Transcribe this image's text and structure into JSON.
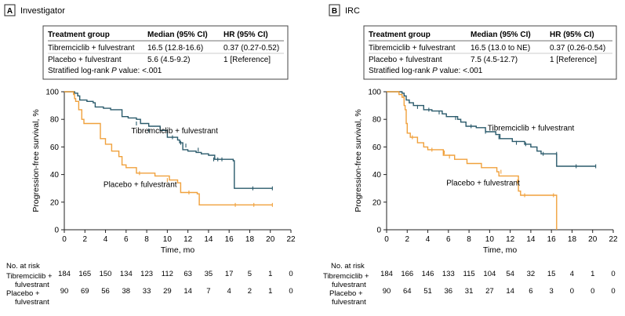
{
  "colors": {
    "tibremciclib": "#2a5a6b",
    "placebo": "#f0a13c",
    "axis": "#222222",
    "table_border": "#444444"
  },
  "panels": [
    {
      "letter": "A",
      "name": "Investigator",
      "table": {
        "headers": [
          "Treatment group",
          "Median (95% CI)",
          "HR (95% CI)"
        ],
        "rows": [
          [
            "Tibremciclib + fulvestrant",
            "16.5 (12.8-16.6)",
            "0.37 (0.27-0.52)"
          ],
          [
            "Placebo + fulvestrant",
            "5.6 (4.5-9.2)",
            "1 [Reference]"
          ]
        ],
        "footer_prefix": "Stratified log-rank ",
        "footer_italic": "P",
        "footer_suffix": " value: <.001"
      },
      "risk": {
        "title": "No. at risk",
        "rows": [
          {
            "label": [
              "Tibremciclib +",
              "fulvestrant"
            ],
            "values": [
              "184",
              "165",
              "150",
              "134",
              "123",
              "112",
              "63",
              "35",
              "17",
              "5",
              "1",
              "0"
            ]
          },
          {
            "label": [
              "Placebo +",
              "fulvestrant"
            ],
            "values": [
              "90",
              "69",
              "56",
              "38",
              "33",
              "29",
              "14",
              "7",
              "4",
              "2",
              "1",
              "0"
            ]
          }
        ]
      }
    },
    {
      "letter": "B",
      "name": "IRC",
      "table": {
        "headers": [
          "Treatment group",
          "Median (95% CI)",
          "HR (95% CI)"
        ],
        "rows": [
          [
            "Tibremciclib + fulvestrant",
            "16.5 (13.0 to NE)",
            "0.37 (0.26-0.54)"
          ],
          [
            "Placebo + fulvestrant",
            "7.5 (4.5-12.7)",
            "1 [Reference]"
          ]
        ],
        "footer_prefix": "Stratified log-rank ",
        "footer_italic": "P",
        "footer_suffix": " value: <.001"
      },
      "risk": {
        "title": "No. at risk",
        "rows": [
          {
            "label": [
              "Tibremciclib +",
              "fulvestrant"
            ],
            "values": [
              "184",
              "166",
              "146",
              "133",
              "115",
              "104",
              "54",
              "32",
              "15",
              "4",
              "1",
              "0"
            ]
          },
          {
            "label": [
              "Placebo +",
              "fulvestrant"
            ],
            "values": [
              "90",
              "64",
              "51",
              "36",
              "31",
              "27",
              "14",
              "6",
              "3",
              "0",
              "0",
              "0"
            ]
          }
        ]
      }
    }
  ],
  "chart_data": [
    {
      "type": "line",
      "step": true,
      "xlabel": "Time, mo",
      "ylabel": "Progression-free survival, %",
      "xlim": [
        0,
        22
      ],
      "ylim": [
        0,
        100
      ],
      "xticks": [
        0,
        2,
        4,
        6,
        8,
        10,
        12,
        14,
        16,
        18,
        20,
        22
      ],
      "yticks": [
        0,
        20,
        40,
        60,
        80,
        100
      ],
      "series": [
        {
          "name": "Tibremciclib + fulvestrant",
          "label_at": [
            6.5,
            70
          ],
          "points": [
            [
              0,
              100
            ],
            [
              1.0,
              99
            ],
            [
              1.3,
              97
            ],
            [
              1.5,
              94
            ],
            [
              2.2,
              93
            ],
            [
              2.8,
              92
            ],
            [
              3.0,
              89
            ],
            [
              3.8,
              88
            ],
            [
              4.5,
              87
            ],
            [
              5.6,
              82
            ],
            [
              6.2,
              81
            ],
            [
              7.0,
              80
            ],
            [
              7.4,
              77
            ],
            [
              8.2,
              75
            ],
            [
              9.3,
              72
            ],
            [
              10.0,
              67
            ],
            [
              11.0,
              65
            ],
            [
              11.2,
              63
            ],
            [
              11.5,
              58
            ],
            [
              12.0,
              57
            ],
            [
              12.8,
              56
            ],
            [
              13.3,
              55
            ],
            [
              14.0,
              54
            ],
            [
              14.6,
              51
            ],
            [
              16.4,
              50
            ],
            [
              16.5,
              30
            ],
            [
              20.2,
              30
            ]
          ],
          "censor": [
            [
              7.0,
              77
            ],
            [
              8.2,
              72
            ],
            [
              10.5,
              67
            ],
            [
              11.3,
              63
            ],
            [
              11.8,
              61
            ],
            [
              13.0,
              58
            ],
            [
              14.5,
              51
            ],
            [
              14.9,
              51
            ],
            [
              15.3,
              51
            ],
            [
              18.3,
              30
            ],
            [
              20.2,
              30
            ]
          ]
        },
        {
          "name": "Placebo + fulvestrant",
          "label_at": [
            3.8,
            31
          ],
          "points": [
            [
              0,
              100
            ],
            [
              0.9,
              98
            ],
            [
              1.0,
              95
            ],
            [
              1.1,
              93
            ],
            [
              1.4,
              87
            ],
            [
              1.7,
              80
            ],
            [
              1.9,
              77
            ],
            [
              3.5,
              66
            ],
            [
              4.0,
              62
            ],
            [
              4.6,
              57
            ],
            [
              5.3,
              53
            ],
            [
              5.6,
              47
            ],
            [
              6.0,
              45
            ],
            [
              7.0,
              41
            ],
            [
              8.8,
              39
            ],
            [
              10.2,
              36
            ],
            [
              11.0,
              34
            ],
            [
              11.3,
              27
            ],
            [
              12.9,
              26
            ],
            [
              13.1,
              18
            ],
            [
              20.2,
              18
            ]
          ],
          "censor": [
            [
              7.3,
              41
            ],
            [
              10.0,
              36
            ],
            [
              11.3,
              30
            ],
            [
              12.1,
              27
            ],
            [
              13.1,
              22
            ],
            [
              16.6,
              18
            ],
            [
              18.4,
              18
            ],
            [
              20.2,
              18
            ]
          ]
        }
      ]
    },
    {
      "type": "line",
      "step": true,
      "xlabel": "Time, mo",
      "ylabel": "Progression-free survival, %",
      "xlim": [
        0,
        22
      ],
      "ylim": [
        0,
        100
      ],
      "xticks": [
        0,
        2,
        4,
        6,
        8,
        10,
        12,
        14,
        16,
        18,
        20,
        22
      ],
      "yticks": [
        0,
        20,
        40,
        60,
        80,
        100
      ],
      "series": [
        {
          "name": "Tibremciclib + fulvestrant",
          "label_at": [
            9.8,
            72
          ],
          "points": [
            [
              0,
              100
            ],
            [
              1.5,
              99
            ],
            [
              1.7,
              97
            ],
            [
              1.9,
              94
            ],
            [
              2.2,
              92
            ],
            [
              2.6,
              90
            ],
            [
              3.6,
              87
            ],
            [
              4.4,
              86
            ],
            [
              5.4,
              84
            ],
            [
              5.8,
              82
            ],
            [
              6.9,
              80
            ],
            [
              7.2,
              78
            ],
            [
              7.7,
              75
            ],
            [
              8.7,
              74
            ],
            [
              9.6,
              71
            ],
            [
              10.6,
              69
            ],
            [
              11.0,
              66
            ],
            [
              12.2,
              64
            ],
            [
              13.4,
              62
            ],
            [
              14.0,
              60
            ],
            [
              14.6,
              57
            ],
            [
              15.0,
              55
            ],
            [
              16.5,
              46
            ],
            [
              20.3,
              46
            ]
          ],
          "censor": [
            [
              2.2,
              93
            ],
            [
              3.0,
              89
            ],
            [
              4.1,
              87
            ],
            [
              5.1,
              85
            ],
            [
              6.7,
              81
            ],
            [
              8.2,
              75
            ],
            [
              9.6,
              71
            ],
            [
              10.9,
              67
            ],
            [
              12.6,
              63
            ],
            [
              13.5,
              62
            ],
            [
              15.2,
              55
            ],
            [
              16.5,
              55
            ],
            [
              18.4,
              46
            ],
            [
              20.3,
              46
            ]
          ]
        },
        {
          "name": "Placebo + fulvestrant",
          "label_at": [
            5.8,
            32
          ],
          "points": [
            [
              0,
              100
            ],
            [
              1.2,
              98
            ],
            [
              1.5,
              96
            ],
            [
              1.7,
              90
            ],
            [
              1.8,
              87
            ],
            [
              1.9,
              77
            ],
            [
              2.0,
              70
            ],
            [
              2.3,
              67
            ],
            [
              3.0,
              63
            ],
            [
              3.6,
              60
            ],
            [
              4.0,
              58
            ],
            [
              5.5,
              54
            ],
            [
              6.6,
              51
            ],
            [
              7.8,
              48
            ],
            [
              9.2,
              45
            ],
            [
              10.7,
              42
            ],
            [
              10.9,
              39
            ],
            [
              12.8,
              28
            ],
            [
              13.0,
              25
            ],
            [
              16.2,
              25
            ],
            [
              16.5,
              0
            ]
          ],
          "censor": [
            [
              2.5,
              67
            ],
            [
              4.4,
              58
            ],
            [
              5.6,
              56
            ],
            [
              6.1,
              53
            ],
            [
              11.1,
              42
            ],
            [
              12.7,
              35
            ],
            [
              13.4,
              25
            ],
            [
              16.2,
              25
            ]
          ]
        }
      ]
    }
  ]
}
